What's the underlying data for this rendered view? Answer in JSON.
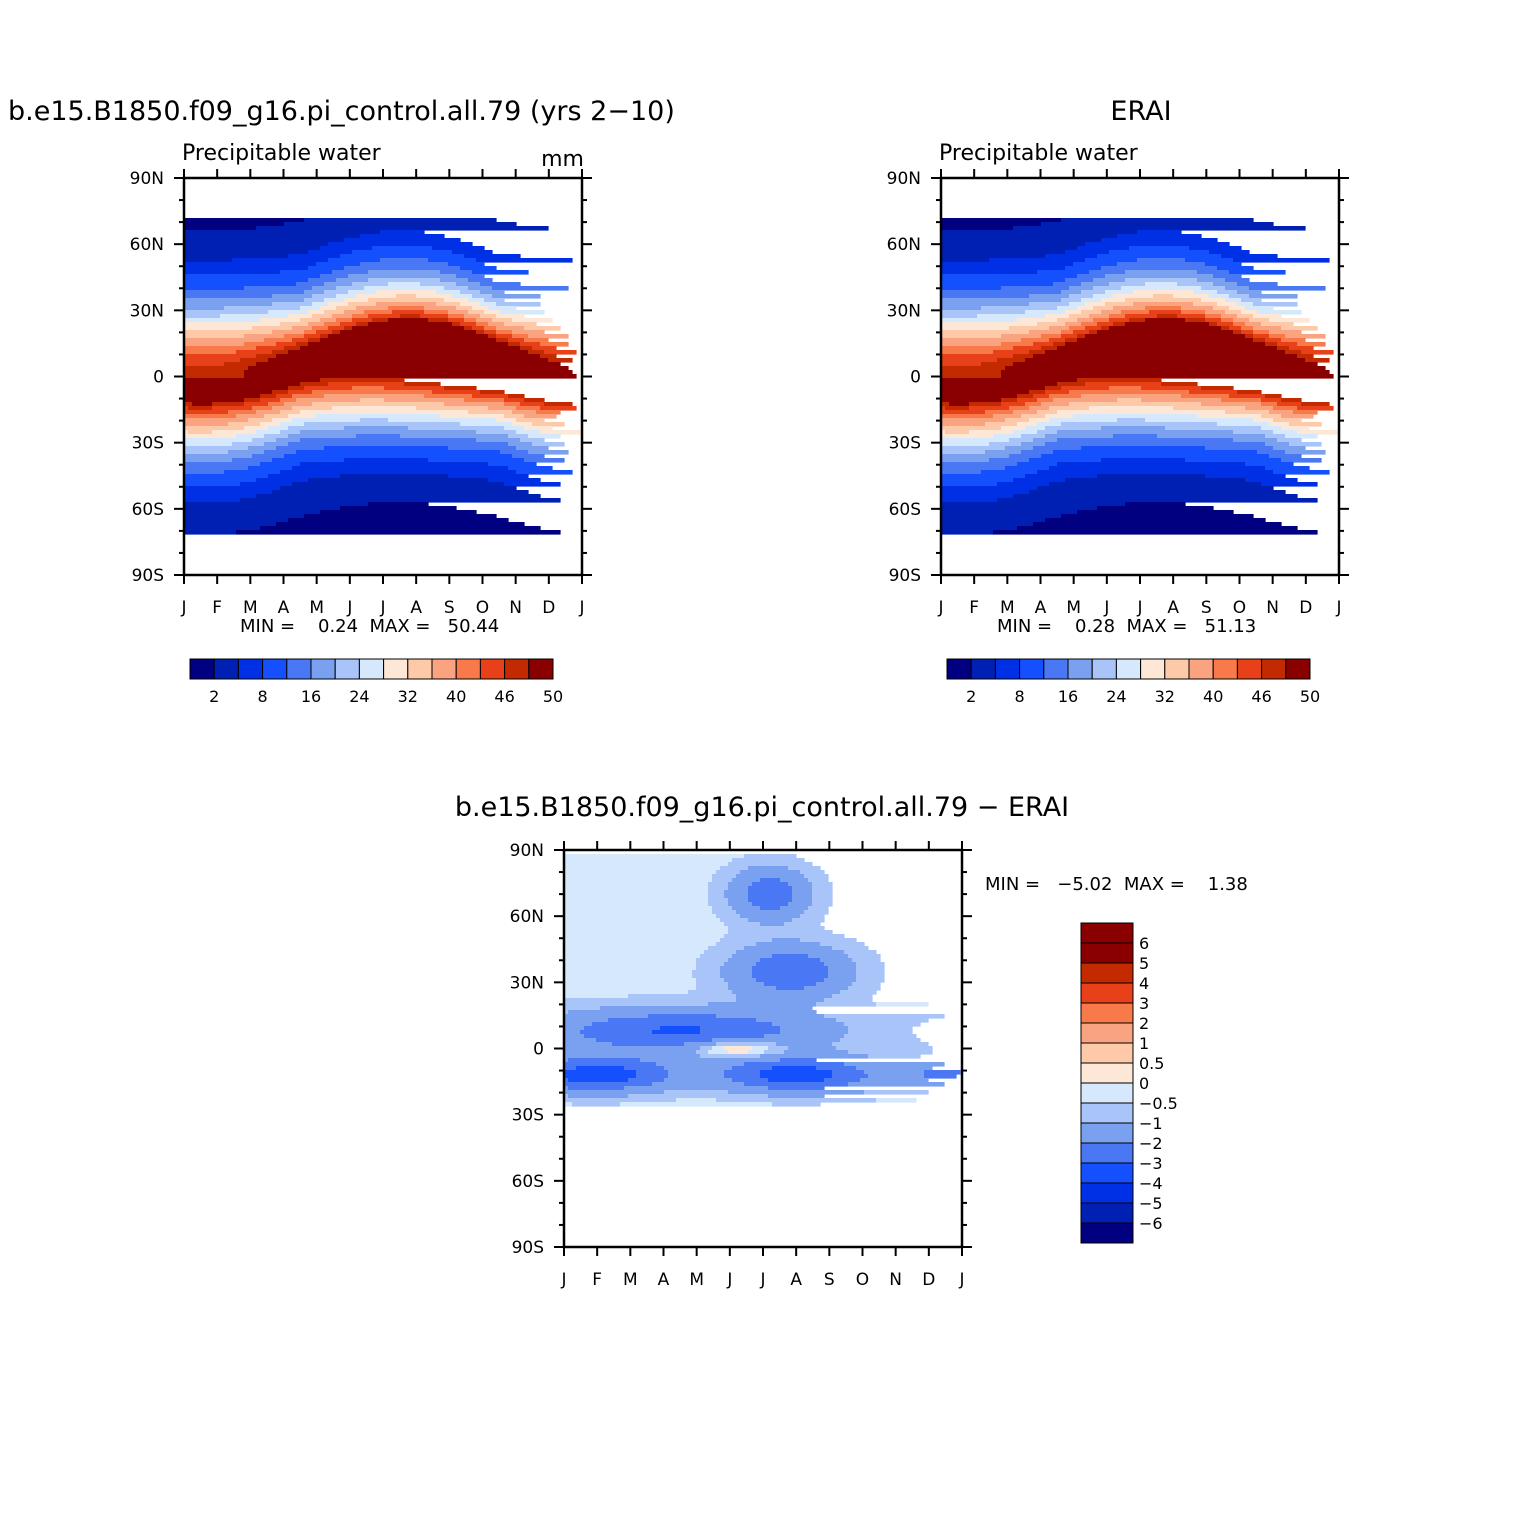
{
  "colors": {
    "abs_scale": [
      "#000080",
      "#0020b3",
      "#0030e6",
      "#1550ff",
      "#4a78f5",
      "#7aa0f0",
      "#a8c4f8",
      "#d6e8fc",
      "#fde8d8",
      "#fdc9a8",
      "#f9a380",
      "#f87a4a",
      "#e84018",
      "#c42a00",
      "#8a0000"
    ],
    "diff_scale": [
      "#000080",
      "#0020b3",
      "#0030e6",
      "#1550ff",
      "#4a78f5",
      "#7aa0f0",
      "#a8c4f8",
      "#d6e8fc",
      "#fde8d8",
      "#fdc9a8",
      "#f9a380",
      "#f87a4a",
      "#e84018",
      "#c42a00",
      "#8a0000",
      "#8a0000"
    ]
  },
  "chart_data": [
    {
      "type": "heatmap",
      "title": "b.e15.B1850.f09_g16.pi_control.all.79 (yrs 2−10)",
      "subtitle": "Precipitable water",
      "units": "mm",
      "x_tick_labels": [
        "J",
        "F",
        "M",
        "A",
        "M",
        "J",
        "J",
        "A",
        "S",
        "O",
        "N",
        "D",
        "J"
      ],
      "y_tick_labels": [
        "90N",
        "60N",
        "30N",
        "0",
        "30S",
        "60S",
        "90S"
      ],
      "ylim": [
        -90,
        90
      ],
      "stats": "MIN =    0.24  MAX =   50.44",
      "colorbar_labels": [
        "2",
        "8",
        "16",
        "24",
        "32",
        "40",
        "46",
        "50"
      ],
      "field": {
        "peak": 50.44,
        "minimum": 0.24,
        "peak_month": 7.5,
        "peak_lat": 8
      }
    },
    {
      "type": "heatmap",
      "title": "ERAI",
      "subtitle": "Precipitable water",
      "units": "",
      "x_tick_labels": [
        "J",
        "F",
        "M",
        "A",
        "M",
        "J",
        "J",
        "A",
        "S",
        "O",
        "N",
        "D",
        "J"
      ],
      "y_tick_labels": [
        "90N",
        "60N",
        "30N",
        "0",
        "30S",
        "60S",
        "90S"
      ],
      "ylim": [
        -90,
        90
      ],
      "stats": "MIN =    0.28  MAX =   51.13",
      "colorbar_labels": [
        "2",
        "8",
        "16",
        "24",
        "32",
        "40",
        "46",
        "50"
      ],
      "field": {
        "peak": 51.13,
        "minimum": 0.28,
        "peak_month": 7.5,
        "peak_lat": 9
      }
    },
    {
      "type": "heatmap",
      "title": "b.e15.B1850.f09_g16.pi_control.all.79 − ERAI",
      "x_tick_labels": [
        "J",
        "F",
        "M",
        "A",
        "M",
        "J",
        "J",
        "A",
        "S",
        "O",
        "N",
        "D",
        "J"
      ],
      "y_tick_labels": [
        "90N",
        "60N",
        "30N",
        "0",
        "30S",
        "60S",
        "90S"
      ],
      "ylim": [
        -90,
        90
      ],
      "stats": "MIN =   −5.02  MAX =    1.38",
      "colorbar_levels": [
        "6",
        "5",
        "4",
        "3",
        "2",
        "1",
        "0.5",
        "0",
        "−0.5",
        "−1",
        "−2",
        "−3",
        "−4",
        "−5",
        "−6"
      ],
      "field": {
        "minimum": -5.02,
        "maximum": 1.38
      }
    }
  ]
}
